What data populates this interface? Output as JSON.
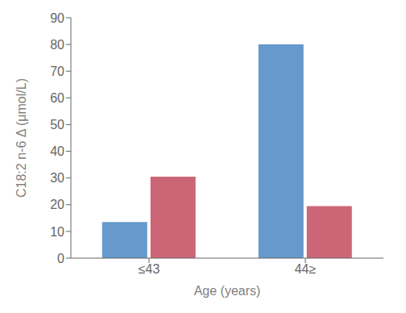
{
  "chart_data": {
    "type": "bar",
    "categories": [
      "≤43",
      "44≥"
    ],
    "series": [
      {
        "color": "#6699CC",
        "values": [
          13.5,
          80
        ]
      },
      {
        "color": "#CC6677",
        "values": [
          30.5,
          19.5
        ]
      }
    ],
    "xlabel": "Age (years)",
    "ylabel": "C18:2 n-6 Δ (μmol/L)",
    "ylim": [
      0,
      90
    ],
    "yticks": [
      0,
      10,
      20,
      30,
      40,
      50,
      60,
      70,
      80,
      90
    ],
    "grid": false
  }
}
